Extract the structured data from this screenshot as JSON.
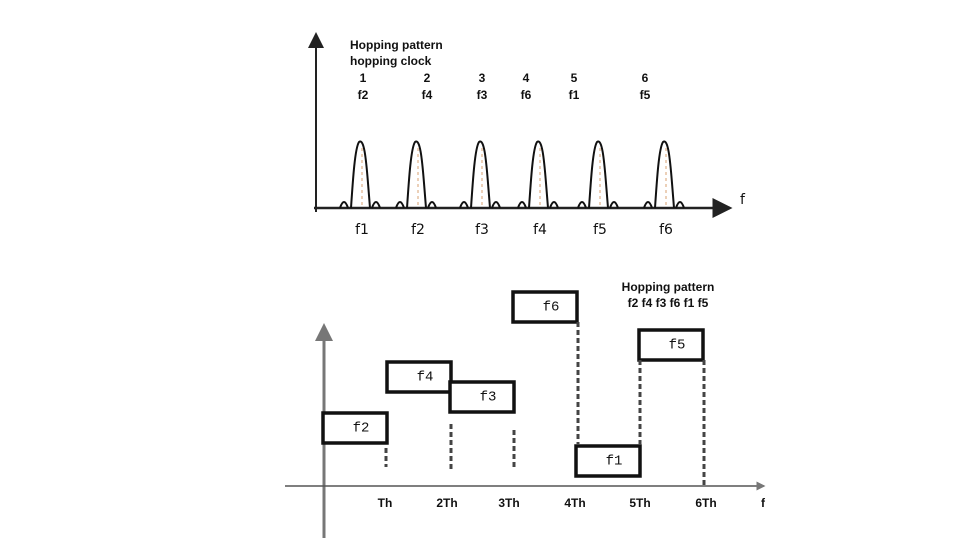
{
  "top": {
    "title_lines": [
      "Hopping pattern",
      "hopping clock"
    ],
    "clock": [
      {
        "slot": "1",
        "freq": "f2"
      },
      {
        "slot": "2",
        "freq": "f4"
      },
      {
        "slot": "3",
        "freq": "f3"
      },
      {
        "slot": "4",
        "freq": "f6"
      },
      {
        "slot": "5",
        "freq": "f1"
      },
      {
        "slot": "6",
        "freq": "f5"
      }
    ],
    "axis_label": "f",
    "carriers": [
      "f1",
      "f2",
      "f3",
      "f4",
      "f5",
      "f6"
    ]
  },
  "bottom": {
    "legend_title": "Hopping pattern",
    "legend_sequence": "f2 f4 f3 f6 f1 f5",
    "blocks": [
      "f2",
      "f4",
      "f3",
      "f6",
      "f1",
      "f5"
    ],
    "time_ticks": [
      "Th",
      "2Th",
      "3Th",
      "4Th",
      "5Th",
      "6Th"
    ],
    "axis_label": "f"
  }
}
